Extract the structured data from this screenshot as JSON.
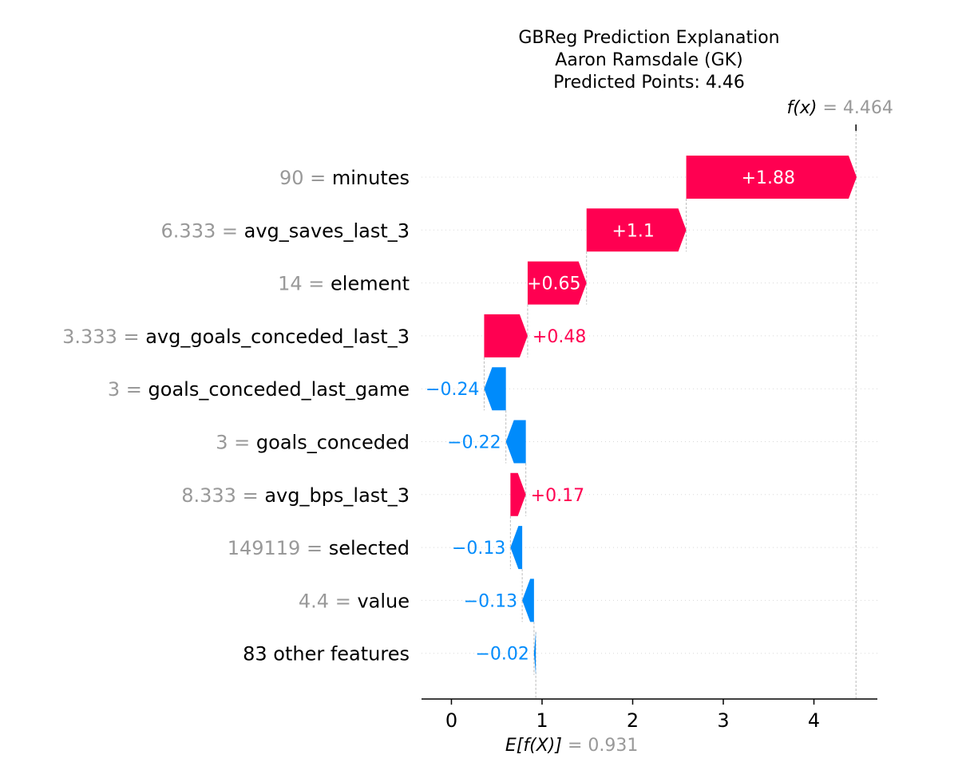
{
  "chart_data": {
    "type": "waterfall",
    "title_lines": [
      "GBReg Prediction Explanation",
      "Aaron Ramsdale (GK)",
      "Predicted Points: 4.46"
    ],
    "base_value": 0.931,
    "base_label": "E[f(X)]",
    "base_value_text": "= 0.931",
    "output_value": 4.464,
    "output_label": "f(x)",
    "output_value_text": "= 4.464",
    "xlim": [
      -0.33,
      4.7
    ],
    "xticks": [
      0,
      1,
      2,
      3,
      4
    ],
    "colors": {
      "positive": "#ff0051",
      "negative": "#008bfb",
      "value_text": "#999999"
    },
    "features": [
      {
        "value": "90",
        "name": "minutes",
        "contribution": 1.88,
        "label": "+1.88"
      },
      {
        "value": "6.333",
        "name": "avg_saves_last_3",
        "contribution": 1.1,
        "label": "+1.1"
      },
      {
        "value": "14",
        "name": "element",
        "contribution": 0.65,
        "label": "+0.65"
      },
      {
        "value": "3.333",
        "name": "avg_goals_conceded_last_3",
        "contribution": 0.48,
        "label": "+0.48"
      },
      {
        "value": "3",
        "name": "goals_conceded_last_game",
        "contribution": -0.24,
        "label": "−0.24"
      },
      {
        "value": "3",
        "name": "goals_conceded",
        "contribution": -0.22,
        "label": "−0.22"
      },
      {
        "value": "8.333",
        "name": "avg_bps_last_3",
        "contribution": 0.17,
        "label": "+0.17"
      },
      {
        "value": "149119",
        "name": "selected",
        "contribution": -0.13,
        "label": "−0.13"
      },
      {
        "value": "4.4",
        "name": "value",
        "contribution": -0.13,
        "label": "−0.13"
      },
      {
        "value": "",
        "name": "83 other features",
        "contribution": -0.02,
        "label": "−0.02"
      }
    ]
  }
}
